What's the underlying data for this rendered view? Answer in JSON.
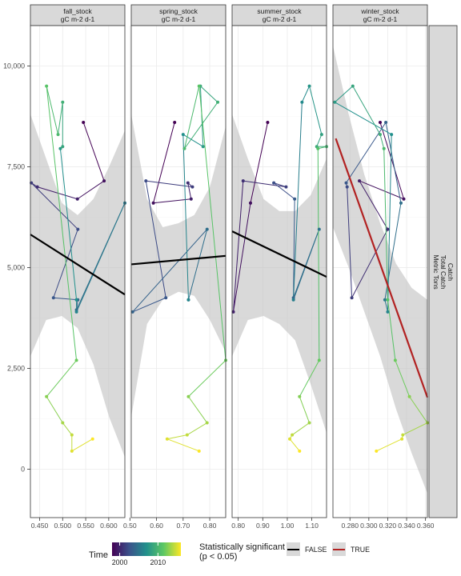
{
  "chart_data": {
    "type": "line",
    "facet_right_label": [
      "Catch",
      "Total Catch",
      "Metric Tons"
    ],
    "y_ticks": [
      0,
      2500,
      5000,
      7500,
      10000
    ],
    "y_tick_labels": [
      "0",
      "2,500",
      "5,000",
      "7,500",
      "10,000"
    ],
    "ylim": [
      -1200,
      11000
    ],
    "legend": {
      "time_title": "Time",
      "time_range": [
        1998,
        2016
      ],
      "time_ticks": [
        2000,
        2010
      ],
      "time_tick_labels": [
        "2000",
        "2010"
      ],
      "sig_title_line1": "Statistically significant",
      "sig_title_line2": "(p < 0.05)",
      "sig_entries": [
        {
          "label": "FALSE",
          "color": "#000000"
        },
        {
          "label": "TRUE",
          "color": "#b22222"
        }
      ]
    },
    "panels": [
      {
        "name": "fall_stock",
        "subtitle": "gC m-2 d-1",
        "xlim": [
          0.43,
          0.635
        ],
        "x_ticks": [
          0.45,
          0.5,
          0.55,
          0.6
        ],
        "x_tick_labels": [
          "0.450",
          "0.500",
          "0.550",
          "0.600"
        ],
        "x": [
          0.545,
          0.59,
          0.532,
          0.445,
          0.432,
          0.533,
          0.48,
          0.533,
          0.53,
          0.635,
          0.53,
          0.53,
          0.495,
          0.5,
          0.5,
          0.49,
          0.465,
          0.53,
          0.465,
          0.5,
          0.52,
          0.52,
          0.565
        ],
        "y": [
          8600,
          7150,
          6700,
          7000,
          7100,
          5950,
          4250,
          4200,
          3950,
          6600,
          3900,
          4200,
          7950,
          8000,
          9100,
          8300,
          9500,
          2700,
          1800,
          1150,
          850,
          450,
          750
        ],
        "fit": {
          "x0": 0.43,
          "y0": 5820,
          "x1": 0.635,
          "y1": 4330,
          "significant": false
        },
        "band_lower": [
          2800,
          3700,
          3800,
          3500,
          2600,
          1300,
          300
        ],
        "band_upper": [
          8800,
          7700,
          6600,
          6300,
          6700,
          7500,
          8400
        ]
      },
      {
        "name": "spring_stock",
        "subtitle": "gC m-2 d-1",
        "xlim": [
          0.505,
          0.86
        ],
        "x_ticks": [
          0.5,
          0.6,
          0.7,
          0.8
        ],
        "x_tick_labels": [
          "0.50",
          "0.60",
          "0.70",
          "0.80"
        ],
        "x": [
          0.668,
          0.588,
          0.73,
          0.718,
          0.735,
          0.56,
          0.635,
          0.51,
          0.79,
          0.72,
          0.72,
          0.7,
          0.775,
          0.765,
          0.83,
          0.705,
          0.76,
          0.86,
          0.72,
          0.79,
          0.715,
          0.64,
          0.76
        ],
        "y": [
          8600,
          6600,
          6700,
          7100,
          7000,
          7150,
          4250,
          3900,
          5950,
          4200,
          4200,
          8300,
          8000,
          9500,
          9100,
          7950,
          9500,
          2700,
          1800,
          1150,
          850,
          750,
          450
        ],
        "fit": {
          "x0": 0.505,
          "y0": 5080,
          "x1": 0.86,
          "y1": 5290,
          "significant": false
        },
        "band_lower": [
          1300,
          3600,
          4200,
          4400,
          4300,
          3700,
          2900
        ],
        "band_upper": [
          8800,
          6700,
          6000,
          6100,
          6300,
          7000,
          8500
        ]
      },
      {
        "name": "summer_stock",
        "subtitle": "gC m-2 d-1",
        "xlim": [
          0.775,
          1.16
        ],
        "x_ticks": [
          0.8,
          0.9,
          1.0,
          1.1
        ],
        "x_tick_labels": [
          "0.80",
          "0.90",
          "1.00",
          "1.10"
        ],
        "x": [
          0.92,
          0.85,
          0.78,
          0.82,
          0.995,
          0.945,
          1.03,
          1.025,
          1.13,
          1.025,
          1.06,
          1.09,
          1.14,
          1.12,
          1.16,
          1.125,
          1.13,
          1.05,
          1.09,
          1.02,
          1.01,
          1.05
        ],
        "y": [
          8600,
          6600,
          3900,
          7150,
          7000,
          7100,
          6700,
          4250,
          5950,
          4200,
          9100,
          9500,
          8300,
          8000,
          8000,
          7950,
          2700,
          1800,
          1150,
          850,
          750,
          450
        ],
        "fit": {
          "x0": 0.775,
          "y0": 5900,
          "x1": 1.16,
          "y1": 4770,
          "significant": false
        },
        "band_lower": [
          2800,
          3700,
          3800,
          3600,
          3200,
          2100,
          900
        ],
        "band_upper": [
          8800,
          7700,
          6700,
          6400,
          6400,
          6800,
          7700
        ]
      },
      {
        "name": "winter_stock",
        "subtitle": "gC m-2 d-1",
        "xlim": [
          0.262,
          0.362
        ],
        "x_ticks": [
          0.28,
          0.3,
          0.32,
          0.34,
          0.36
        ],
        "x_tick_labels": [
          "0.280",
          "0.300",
          "0.320",
          "0.340",
          "0.360"
        ],
        "x": [
          0.312,
          0.337,
          0.29,
          0.32,
          0.282,
          0.277,
          0.276,
          0.318,
          0.334,
          0.317,
          0.32,
          0.324,
          0.264,
          0.283,
          0.312,
          0.316,
          0.32,
          0.328,
          0.343,
          0.362,
          0.336,
          0.335,
          0.308
        ],
        "y": [
          8600,
          6700,
          7150,
          5950,
          4250,
          7000,
          7100,
          8600,
          6600,
          4200,
          3900,
          8300,
          9100,
          9500,
          8300,
          7950,
          4200,
          2700,
          1800,
          1150,
          850,
          750,
          450
        ],
        "fit": {
          "x0": 0.265,
          "y0": 8200,
          "x1": 0.362,
          "y1": 1780,
          "significant": true
        },
        "band_lower": [
          6000,
          5000,
          3900,
          2800,
          1500,
          400,
          -600
        ],
        "band_upper": [
          10500,
          8800,
          7300,
          6100,
          5100,
          4500,
          4200
        ]
      }
    ]
  }
}
